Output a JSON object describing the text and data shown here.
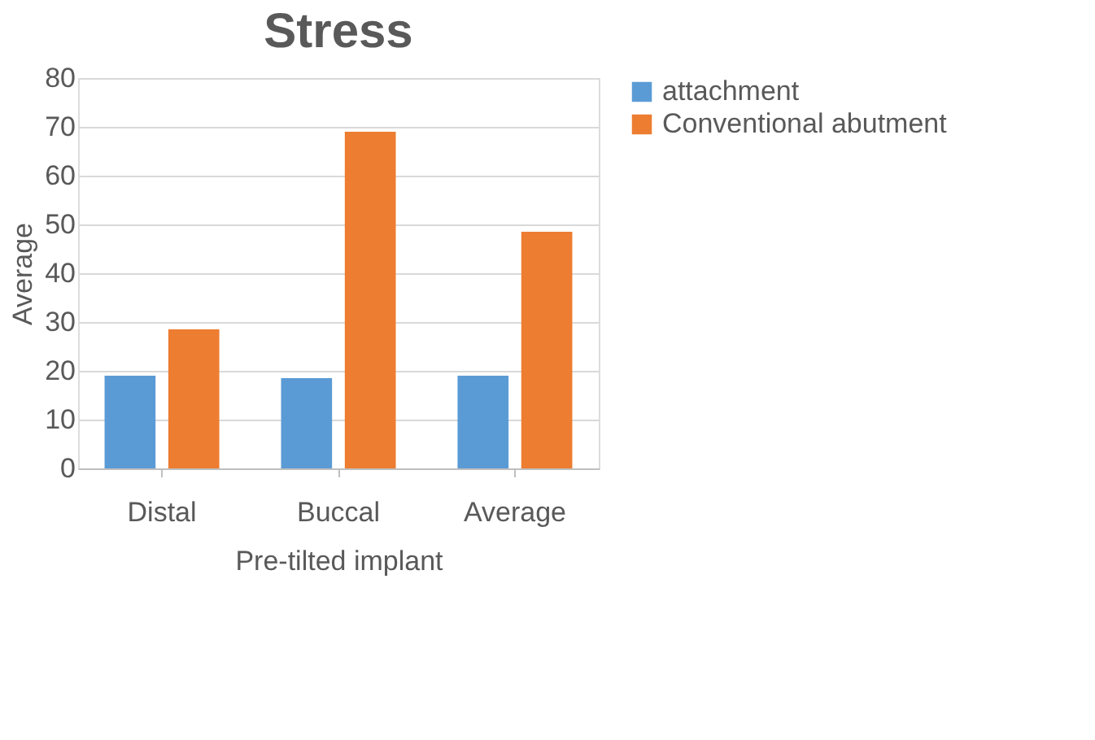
{
  "chart_data": {
    "type": "bar",
    "title": "Stress",
    "xlabel": "Pre-tilted implant",
    "ylabel": "Average",
    "categories": [
      "Distal",
      "Buccal",
      "Average"
    ],
    "series": [
      {
        "name": "attachment",
        "color": "#5b9bd5",
        "values": [
          19,
          18.5,
          19
        ]
      },
      {
        "name": "Conventional abutment",
        "color": "#ed7d31",
        "values": [
          28.5,
          69,
          48.5
        ]
      }
    ],
    "ylim": [
      0,
      80
    ],
    "yticks": [
      0,
      10,
      20,
      30,
      40,
      50,
      60,
      70,
      80
    ],
    "grid": "y",
    "legend": "right"
  }
}
